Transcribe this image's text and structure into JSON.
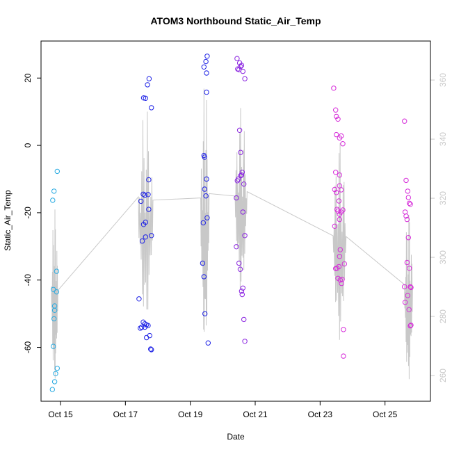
{
  "chart_data": {
    "type": "scatter",
    "title": "ATOM3 Northbound Static_Air_Temp",
    "xlabel": "Date",
    "ylabel": "Static_Air_Temp",
    "x_tick_labels": [
      "Oct 15",
      "Oct 17",
      "Oct 19",
      "Oct 21",
      "Oct 23",
      "Oct 25"
    ],
    "x_ticks_day": [
      15,
      17,
      19,
      21,
      23,
      25
    ],
    "xlim_day": [
      14.4,
      26.4
    ],
    "y_ticks": [
      -60,
      -40,
      -20,
      0,
      20
    ],
    "ylim": [
      -76,
      31
    ],
    "y2_ticks": [
      260,
      280,
      300,
      320,
      340,
      360
    ],
    "y2lim": [
      251.3,
      373.2
    ],
    "grid": false,
    "series": [
      {
        "color": "#29abe2",
        "points": [
          [
            14.75,
            -72.5
          ],
          [
            14.82,
            -70.2
          ],
          [
            14.85,
            -67.8
          ],
          [
            14.9,
            -66.2
          ],
          [
            14.78,
            -59.7
          ],
          [
            14.8,
            -51.5
          ],
          [
            14.82,
            -49.0
          ],
          [
            14.82,
            -47.7
          ],
          [
            14.78,
            -42.8
          ],
          [
            14.88,
            -43.5
          ],
          [
            14.88,
            -37.4
          ],
          [
            14.76,
            -16.3
          ],
          [
            14.8,
            -13.6
          ],
          [
            14.9,
            -7.7
          ]
        ]
      },
      {
        "color": "#1e22e6",
        "points": [
          [
            17.42,
            -45.6
          ],
          [
            17.46,
            -54.3
          ],
          [
            17.5,
            -54.0
          ],
          [
            17.55,
            -52.5
          ],
          [
            17.6,
            -53.0
          ],
          [
            17.65,
            -53.3
          ],
          [
            17.7,
            -53.5
          ],
          [
            17.6,
            -54.0
          ],
          [
            17.65,
            -57.1
          ],
          [
            17.75,
            -56.5
          ],
          [
            17.78,
            -60.5
          ],
          [
            17.8,
            -60.7
          ],
          [
            17.52,
            -28.4
          ],
          [
            17.62,
            -27.2
          ],
          [
            17.8,
            -26.8
          ],
          [
            17.56,
            -23.5
          ],
          [
            17.62,
            -22.8
          ],
          [
            17.72,
            -19.0
          ],
          [
            17.48,
            -16.6
          ],
          [
            17.55,
            -14.5
          ],
          [
            17.6,
            -14.8
          ],
          [
            17.7,
            -14.6
          ],
          [
            17.72,
            -10.2
          ],
          [
            17.8,
            11.2
          ],
          [
            17.56,
            14.1
          ],
          [
            17.62,
            14.0
          ],
          [
            17.68,
            18.0
          ],
          [
            17.73,
            19.8
          ],
          [
            19.38,
            -35.0
          ],
          [
            19.42,
            -39.0
          ],
          [
            19.45,
            -50.0
          ],
          [
            19.55,
            -58.7
          ],
          [
            19.4,
            -23.0
          ],
          [
            19.52,
            -21.5
          ],
          [
            19.48,
            -15.0
          ],
          [
            19.44,
            -13.0
          ],
          [
            19.5,
            -10.0
          ],
          [
            19.42,
            -3.0
          ],
          [
            19.44,
            -3.5
          ],
          [
            19.5,
            15.8
          ],
          [
            19.42,
            23.3
          ],
          [
            19.48,
            24.9
          ],
          [
            19.52,
            26.5
          ],
          [
            19.5,
            21.5
          ]
        ]
      },
      {
        "color": "#8a23e0",
        "points": [
          [
            20.42,
            -30.1
          ],
          [
            20.5,
            -35.0
          ],
          [
            20.54,
            -36.8
          ],
          [
            20.58,
            -43.3
          ],
          [
            20.62,
            -42.4
          ],
          [
            20.6,
            -44.3
          ],
          [
            20.65,
            -51.7
          ],
          [
            20.68,
            -58.2
          ],
          [
            20.68,
            -26.8
          ],
          [
            20.62,
            -19.8
          ],
          [
            20.42,
            -15.6
          ],
          [
            20.45,
            -10.5
          ],
          [
            20.48,
            -10.0
          ],
          [
            20.55,
            -9.0
          ],
          [
            20.58,
            -8.8
          ],
          [
            20.6,
            -8.0
          ],
          [
            20.65,
            -11.5
          ],
          [
            20.55,
            -2.1
          ],
          [
            20.52,
            4.5
          ],
          [
            20.68,
            19.8
          ],
          [
            20.46,
            22.7
          ],
          [
            20.5,
            22.5
          ],
          [
            20.55,
            23.4
          ],
          [
            20.58,
            23.8
          ],
          [
            20.62,
            22.0
          ],
          [
            20.52,
            24.5
          ],
          [
            20.44,
            25.8
          ]
        ]
      },
      {
        "color": "#d62bd9",
        "points": [
          [
            23.42,
            17.0
          ],
          [
            23.48,
            10.5
          ],
          [
            23.5,
            8.6
          ],
          [
            23.55,
            7.8
          ],
          [
            23.5,
            3.2
          ],
          [
            23.6,
            2.2
          ],
          [
            23.65,
            2.8
          ],
          [
            23.7,
            0.5
          ],
          [
            23.48,
            -8.0
          ],
          [
            23.6,
            -8.8
          ],
          [
            23.45,
            -13.1
          ],
          [
            23.5,
            -14.0
          ],
          [
            23.6,
            -12.0
          ],
          [
            23.65,
            -13.2
          ],
          [
            23.58,
            -16.5
          ],
          [
            23.52,
            -19.0
          ],
          [
            23.55,
            -19.5
          ],
          [
            23.6,
            -20.5
          ],
          [
            23.65,
            -19.8
          ],
          [
            23.7,
            -19.2
          ],
          [
            23.6,
            -22.0
          ],
          [
            23.45,
            -24.0
          ],
          [
            23.62,
            -31.0
          ],
          [
            23.6,
            -33.0
          ],
          [
            23.75,
            -35.2
          ],
          [
            23.48,
            -36.6
          ],
          [
            23.52,
            -36.5
          ],
          [
            23.58,
            -36.0
          ],
          [
            23.55,
            -39.5
          ],
          [
            23.62,
            -40.0
          ],
          [
            23.66,
            -41.0
          ],
          [
            23.68,
            -39.8
          ],
          [
            23.72,
            -54.7
          ],
          [
            23.72,
            -62.6
          ],
          [
            25.6,
            7.2
          ],
          [
            25.65,
            -10.4
          ],
          [
            25.7,
            -13.6
          ],
          [
            25.72,
            -15.5
          ],
          [
            25.75,
            -17.2
          ],
          [
            25.78,
            -17.5
          ],
          [
            25.62,
            -19.8
          ],
          [
            25.65,
            -21.0
          ],
          [
            25.68,
            -22.0
          ],
          [
            25.6,
            -42.0
          ],
          [
            25.62,
            -46.6
          ],
          [
            25.7,
            -44.6
          ],
          [
            25.72,
            -27.4
          ],
          [
            25.68,
            -34.8
          ],
          [
            25.75,
            -36.5
          ],
          [
            25.78,
            -42.0
          ],
          [
            25.8,
            -42.2
          ],
          [
            25.74,
            -48.8
          ],
          [
            25.78,
            -53.6
          ],
          [
            25.8,
            -53.4
          ]
        ]
      }
    ]
  }
}
